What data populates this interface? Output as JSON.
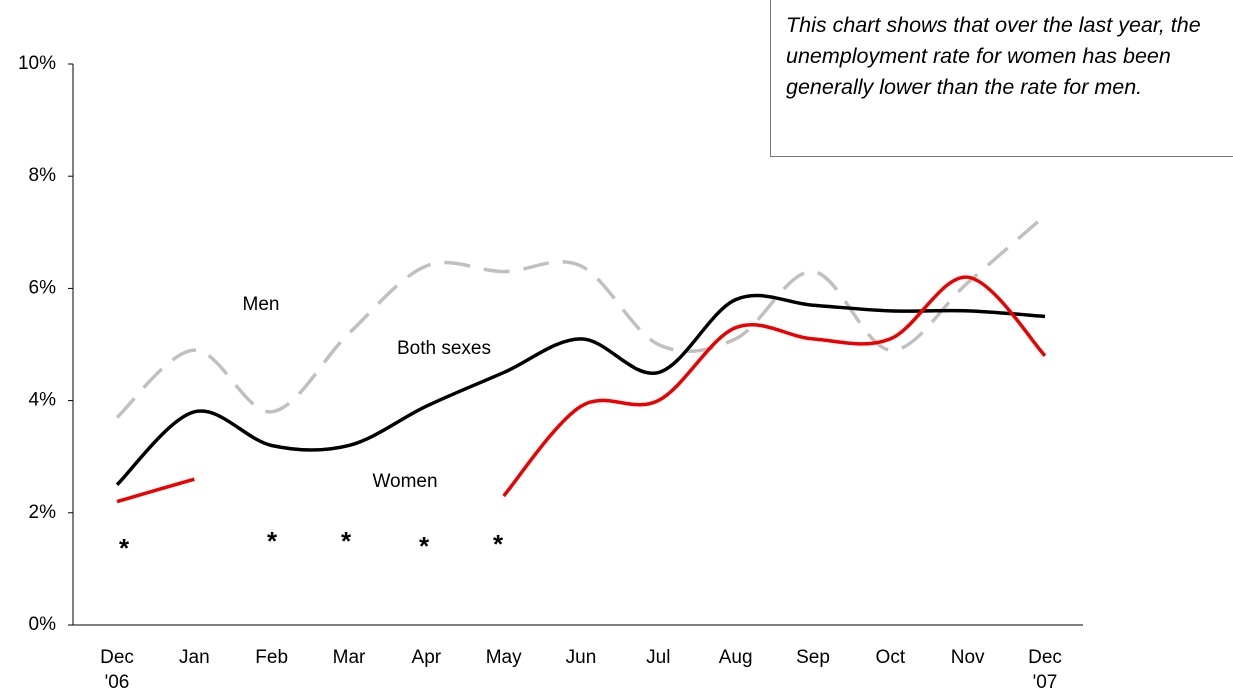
{
  "chart_data": {
    "type": "line",
    "annotation": "This chart shows that over the last year, the unemployment rate for women has been generally lower than the rate for men.",
    "note_marker": "*",
    "categories": [
      "Dec '06",
      "Jan",
      "Feb",
      "Mar",
      "Apr",
      "May",
      "Jun",
      "Jul",
      "Aug",
      "Sep",
      "Oct",
      "Nov",
      "Dec '07"
    ],
    "series": [
      {
        "name": "Men",
        "color": "#c0c0c0",
        "dashed": true,
        "values": [
          3.7,
          4.9,
          3.8,
          5.2,
          6.4,
          6.3,
          6.4,
          5.0,
          5.1,
          6.3,
          4.9,
          6.1,
          7.3
        ]
      },
      {
        "name": "Both sexes",
        "color": "#000000",
        "dashed": false,
        "values": [
          2.5,
          3.8,
          3.2,
          3.2,
          3.9,
          4.5,
          5.1,
          4.5,
          5.8,
          5.7,
          5.6,
          5.6,
          5.5
        ]
      },
      {
        "name": "Women",
        "color": "#ee0000",
        "dashed": false,
        "values": [
          2.2,
          2.6,
          null,
          null,
          null,
          2.3,
          3.9,
          4.0,
          5.3,
          5.1,
          5.1,
          6.2,
          4.8
        ]
      }
    ],
    "ylim": [
      0,
      10
    ],
    "yticks": [
      {
        "value": 0,
        "label": "0%"
      },
      {
        "value": 2,
        "label": "2%"
      },
      {
        "value": 4,
        "label": "4%"
      },
      {
        "value": 6,
        "label": "6%"
      },
      {
        "value": 8,
        "label": "8%"
      },
      {
        "value": 10,
        "label": "10%"
      }
    ]
  }
}
